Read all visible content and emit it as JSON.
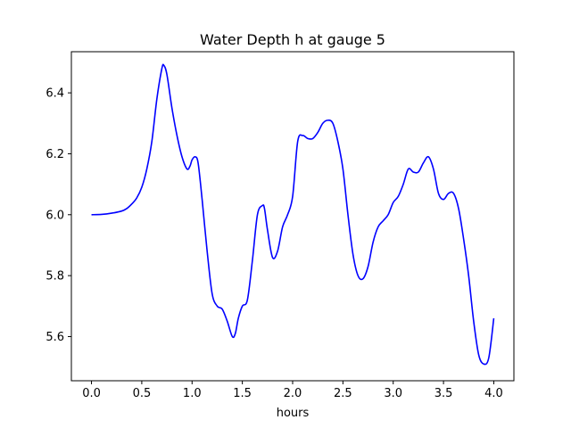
{
  "chart_data": {
    "type": "line",
    "title": "Water Depth h at gauge 5",
    "xlabel": "hours",
    "ylabel": "",
    "xlim": [
      -0.2,
      4.2
    ],
    "ylim": [
      5.455,
      6.535
    ],
    "grid": false,
    "xticks": [
      0.0,
      0.5,
      1.0,
      1.5,
      2.0,
      2.5,
      3.0,
      3.5,
      4.0
    ],
    "xtick_labels": [
      "0.0",
      "0.5",
      "1.0",
      "1.5",
      "2.0",
      "2.5",
      "3.0",
      "3.5",
      "4.0"
    ],
    "yticks": [
      5.6,
      5.8,
      6.0,
      6.2,
      6.4
    ],
    "ytick_labels": [
      "5.6",
      "5.8",
      "6.0",
      "6.2",
      "6.4"
    ],
    "series": [
      {
        "color": "#0000ff",
        "x": [
          0.0,
          0.1,
          0.2,
          0.3,
          0.35,
          0.4,
          0.45,
          0.5,
          0.55,
          0.6,
          0.65,
          0.7,
          0.72,
          0.75,
          0.8,
          0.85,
          0.9,
          0.95,
          0.98,
          1.0,
          1.03,
          1.06,
          1.1,
          1.15,
          1.2,
          1.25,
          1.3,
          1.35,
          1.4,
          1.43,
          1.46,
          1.5,
          1.55,
          1.6,
          1.65,
          1.7,
          1.72,
          1.75,
          1.8,
          1.85,
          1.9,
          1.95,
          2.0,
          2.05,
          2.1,
          2.15,
          2.2,
          2.25,
          2.3,
          2.35,
          2.4,
          2.45,
          2.5,
          2.55,
          2.6,
          2.65,
          2.7,
          2.75,
          2.8,
          2.85,
          2.9,
          2.95,
          3.0,
          3.05,
          3.1,
          3.15,
          3.2,
          3.25,
          3.3,
          3.35,
          3.4,
          3.45,
          3.5,
          3.55,
          3.6,
          3.65,
          3.7,
          3.75,
          3.8,
          3.85,
          3.9,
          3.95,
          4.0
        ],
        "y": [
          6.0,
          6.001,
          6.005,
          6.012,
          6.02,
          6.035,
          6.055,
          6.09,
          6.15,
          6.24,
          6.38,
          6.48,
          6.49,
          6.46,
          6.35,
          6.26,
          6.19,
          6.15,
          6.16,
          6.18,
          6.19,
          6.17,
          6.05,
          5.88,
          5.74,
          5.7,
          5.69,
          5.65,
          5.6,
          5.61,
          5.66,
          5.7,
          5.72,
          5.85,
          6.0,
          6.03,
          6.02,
          5.95,
          5.86,
          5.88,
          5.96,
          6.0,
          6.06,
          6.24,
          6.26,
          6.25,
          6.25,
          6.27,
          6.3,
          6.31,
          6.3,
          6.24,
          6.15,
          6.0,
          5.87,
          5.8,
          5.79,
          5.83,
          5.91,
          5.96,
          5.98,
          6.0,
          6.04,
          6.06,
          6.1,
          6.15,
          6.14,
          6.14,
          6.17,
          6.19,
          6.15,
          6.07,
          6.05,
          6.07,
          6.07,
          6.02,
          5.92,
          5.8,
          5.65,
          5.54,
          5.51,
          5.53,
          5.66
        ]
      }
    ]
  }
}
